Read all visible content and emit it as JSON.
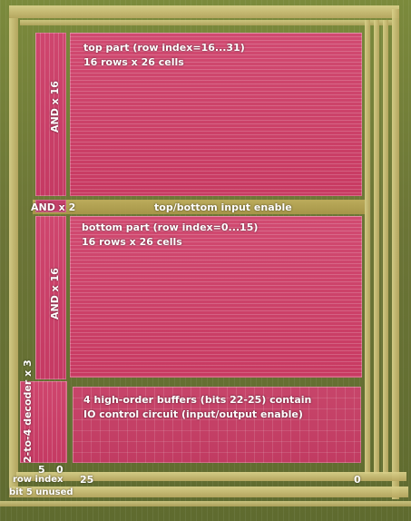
{
  "labels": {
    "top_part_line1": "top part (row index=16...31)",
    "top_part_line2": "16 rows x 26 cells",
    "and16_top": "AND x 16",
    "and2": "AND x 2",
    "top_bottom_enable": "top/bottom input enable",
    "bottom_part_line1": "bottom part (row index=0...15)",
    "bottom_part_line2": "16 rows x 26 cells",
    "and16_bottom": "AND x 16",
    "decoder": "2-to-4 decoder x 3",
    "buffers_line1": "4 high-order buffers (bits 22-25) contain",
    "buffers_line2": "IO control circuit (input/output enable)",
    "bit_5": "5",
    "bit_0_left": "0",
    "bit_25": "25",
    "bit_0_right": "0",
    "row_index": "row index",
    "bit5_unused": "bit 5 unused"
  },
  "colors": {
    "red_overlay": "#c73b62",
    "metal": "#d9d08a",
    "substrate": "#6f7a3a"
  }
}
